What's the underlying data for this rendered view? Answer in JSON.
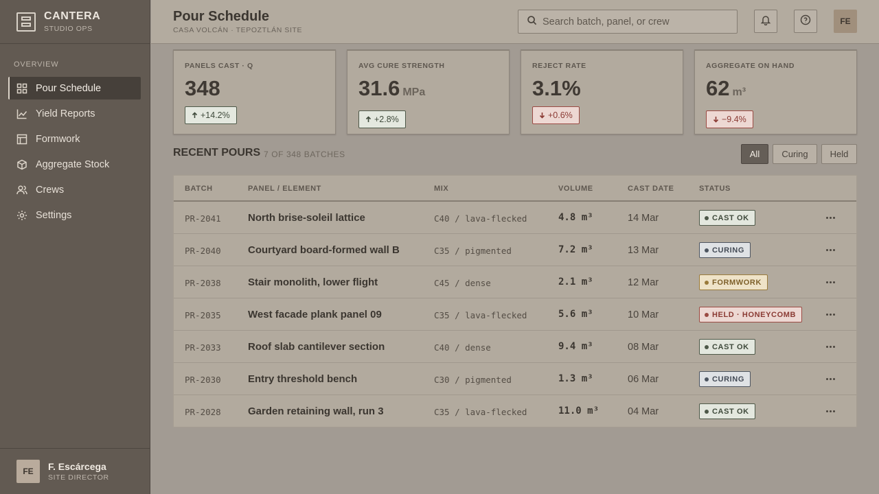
{
  "brand": {
    "name": "CANTERA",
    "subtitle": "STUDIO OPS"
  },
  "sidebar": {
    "heading": "OVERVIEW",
    "items": [
      {
        "label": "Pour Schedule",
        "icon": "grid-icon",
        "active": true
      },
      {
        "label": "Yield Reports",
        "icon": "chart-line-icon"
      },
      {
        "label": "Formwork",
        "icon": "layout-icon"
      },
      {
        "label": "Aggregate Stock",
        "icon": "box-icon"
      },
      {
        "label": "Crews",
        "icon": "users-icon"
      },
      {
        "label": "Settings",
        "icon": "gear-icon"
      }
    ]
  },
  "user": {
    "initials": "FE",
    "name": "F. Escárcega",
    "role": "SITE DIRECTOR"
  },
  "header": {
    "title": "Pour Schedule",
    "subtitle": "CASA VOLCÁN · TEPOZTLÁN SITE",
    "search_placeholder": "Search batch, panel, or crew",
    "avatar_initials": "FE"
  },
  "kpis": [
    {
      "label": "PANELS CAST · Q",
      "value": "348",
      "unit": "",
      "delta": "+14.2%",
      "direction": "up"
    },
    {
      "label": "AVG CURE STRENGTH",
      "value": "31.6",
      "unit": "MPa",
      "delta": "+2.8%",
      "direction": "up"
    },
    {
      "label": "REJECT RATE",
      "value": "3.1%",
      "unit": "",
      "delta": "+0.6%",
      "direction": "down"
    },
    {
      "label": "AGGREGATE ON HAND",
      "value": "62",
      "unit": "m³",
      "delta": "−9.4%",
      "direction": "down"
    }
  ],
  "section": {
    "title": "RECENT POURS",
    "count": "7 OF 348 BATCHES"
  },
  "filters": [
    {
      "label": "All",
      "active": true
    },
    {
      "label": "Curing",
      "active": false
    },
    {
      "label": "Held",
      "active": false
    }
  ],
  "table": {
    "headers": [
      "BATCH",
      "PANEL / ELEMENT",
      "MIX",
      "VOLUME",
      "CAST DATE",
      "STATUS"
    ],
    "rows": [
      {
        "batch": "PR-2041",
        "panel": "North brise-soleil lattice",
        "mix": "C40 / lava-flecked",
        "volume": "4.8 m³",
        "date": "14 Mar",
        "status": "CAST OK",
        "status_type": "ok"
      },
      {
        "batch": "PR-2040",
        "panel": "Courtyard board-formed wall B",
        "mix": "C35 / pigmented",
        "volume": "7.2 m³",
        "date": "13 Mar",
        "status": "CURING",
        "status_type": "cur"
      },
      {
        "batch": "PR-2038",
        "panel": "Stair monolith, lower flight",
        "mix": "C45 / dense",
        "volume": "2.1 m³",
        "date": "12 Mar",
        "status": "FORMWORK",
        "status_type": "form"
      },
      {
        "batch": "PR-2035",
        "panel": "West facade plank panel 09",
        "mix": "C35 / lava-flecked",
        "volume": "5.6 m³",
        "date": "10 Mar",
        "status": "HELD · HONEYCOMB",
        "status_type": "held"
      },
      {
        "batch": "PR-2033",
        "panel": "Roof slab cantilever section",
        "mix": "C40 / dense",
        "volume": "9.4 m³",
        "date": "08 Mar",
        "status": "CAST OK",
        "status_type": "ok"
      },
      {
        "batch": "PR-2030",
        "panel": "Entry threshold bench",
        "mix": "C30 / pigmented",
        "volume": "1.3 m³",
        "date": "06 Mar",
        "status": "CURING",
        "status_type": "cur"
      },
      {
        "batch": "PR-2028",
        "panel": "Garden retaining wall, run 3",
        "mix": "C35 / lava-flecked",
        "volume": "11.0 m³",
        "date": "04 Mar",
        "status": "CAST OK",
        "status_type": "ok"
      }
    ]
  }
}
